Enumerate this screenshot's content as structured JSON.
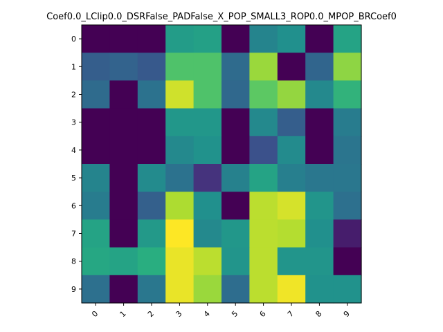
{
  "chart_data": {
    "type": "heatmap",
    "title": "Coef0.0_LClip0.0_DSRFalse_PADFalse_X_POP_SMALL3_ROP0.0_MPOP_BRCoef0",
    "x_ticks": [
      "0",
      "1",
      "2",
      "3",
      "4",
      "5",
      "6",
      "7",
      "8",
      "9"
    ],
    "y_ticks": [
      "0",
      "1",
      "2",
      "3",
      "4",
      "5",
      "6",
      "7",
      "8",
      "9"
    ],
    "colormap": "viridis",
    "value_range": [
      0,
      1
    ],
    "values": [
      [
        0.0,
        0.0,
        0.0,
        0.55,
        0.57,
        0.0,
        0.45,
        0.5,
        0.0,
        0.58
      ],
      [
        0.3,
        0.32,
        0.28,
        0.72,
        0.72,
        0.35,
        0.85,
        0.0,
        0.33,
        0.83
      ],
      [
        0.35,
        0.0,
        0.38,
        0.93,
        0.72,
        0.34,
        0.75,
        0.84,
        0.47,
        0.65
      ],
      [
        0.0,
        0.0,
        0.0,
        0.53,
        0.53,
        0.0,
        0.47,
        0.3,
        0.0,
        0.42
      ],
      [
        0.0,
        0.0,
        0.0,
        0.47,
        0.51,
        0.0,
        0.25,
        0.48,
        0.0,
        0.39
      ],
      [
        0.45,
        0.0,
        0.48,
        0.38,
        0.15,
        0.44,
        0.58,
        0.43,
        0.4,
        0.4
      ],
      [
        0.42,
        0.0,
        0.31,
        0.88,
        0.5,
        0.0,
        0.9,
        0.94,
        0.52,
        0.37
      ],
      [
        0.58,
        0.0,
        0.54,
        1.0,
        0.47,
        0.53,
        0.9,
        0.89,
        0.5,
        0.08
      ],
      [
        0.6,
        0.58,
        0.63,
        0.97,
        0.9,
        0.52,
        0.9,
        0.52,
        0.52,
        0.0
      ],
      [
        0.37,
        0.0,
        0.4,
        0.97,
        0.85,
        0.36,
        0.9,
        0.98,
        0.51,
        0.51
      ]
    ]
  }
}
